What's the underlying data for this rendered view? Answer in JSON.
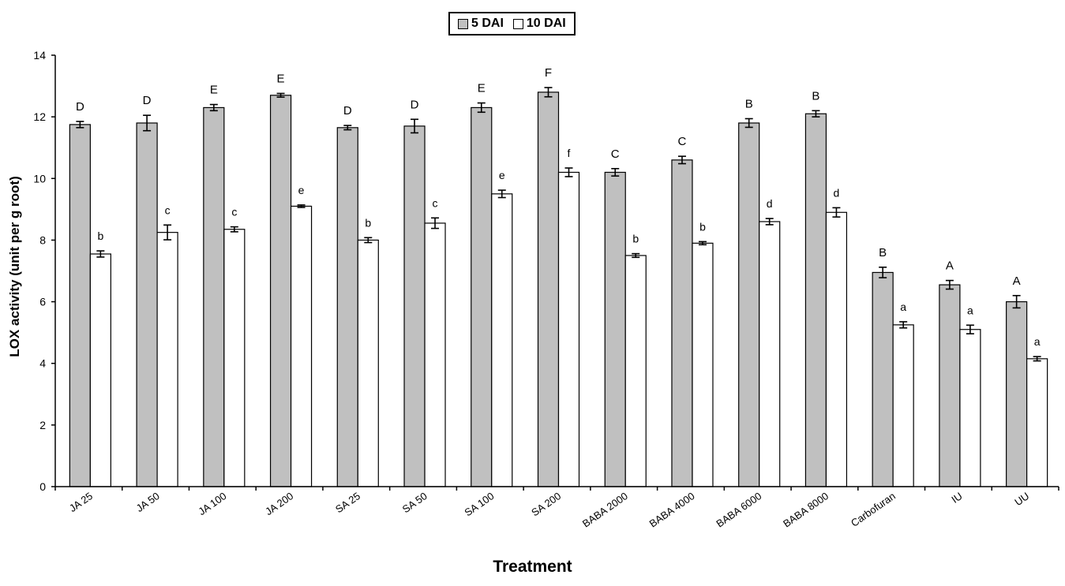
{
  "chart_data": {
    "type": "bar",
    "xlabel": "Treatment",
    "ylabel": "LOX activity (unit per g root)",
    "ylim": [
      0,
      14
    ],
    "yticks": [
      0,
      2,
      4,
      6,
      8,
      10,
      12,
      14
    ],
    "grid": false,
    "legend_position": "top-center",
    "categories": [
      "JA 25",
      "JA 50",
      "JA 100",
      "JA 200",
      "SA 25",
      "SA 50",
      "SA 100",
      "SA 200",
      "BABA 2000",
      "BABA 4000",
      "BABA 6000",
      "BABA 8000",
      "Carbofuran",
      "IU",
      "UU"
    ],
    "series": [
      {
        "name": "5 DAI",
        "color": "#c0c0c0",
        "values": [
          11.75,
          11.8,
          12.3,
          12.7,
          11.65,
          11.7,
          12.3,
          12.8,
          10.2,
          10.6,
          11.8,
          12.1,
          6.95,
          6.55,
          6.0
        ],
        "errors": [
          0.1,
          0.25,
          0.1,
          0.06,
          0.07,
          0.22,
          0.15,
          0.15,
          0.12,
          0.12,
          0.14,
          0.1,
          0.17,
          0.14,
          0.2
        ],
        "labels": [
          "D",
          "D",
          "E",
          "E",
          "D",
          "D",
          "E",
          "F",
          "C",
          "C",
          "B",
          "B",
          "B",
          "A",
          "A"
        ]
      },
      {
        "name": "10 DAI",
        "color": "#ffffff",
        "values": [
          7.55,
          8.25,
          8.35,
          9.1,
          8.0,
          8.55,
          9.5,
          10.2,
          7.5,
          7.9,
          8.6,
          8.9,
          5.25,
          5.1,
          4.15
        ],
        "errors": [
          0.1,
          0.24,
          0.08,
          0.04,
          0.08,
          0.17,
          0.12,
          0.14,
          0.06,
          0.05,
          0.1,
          0.15,
          0.1,
          0.14,
          0.07
        ],
        "labels": [
          "b",
          "c",
          "c",
          "e",
          "b",
          "c",
          "e",
          "f",
          "b",
          "b",
          "d",
          "d",
          "a",
          "a",
          "a"
        ]
      }
    ]
  }
}
